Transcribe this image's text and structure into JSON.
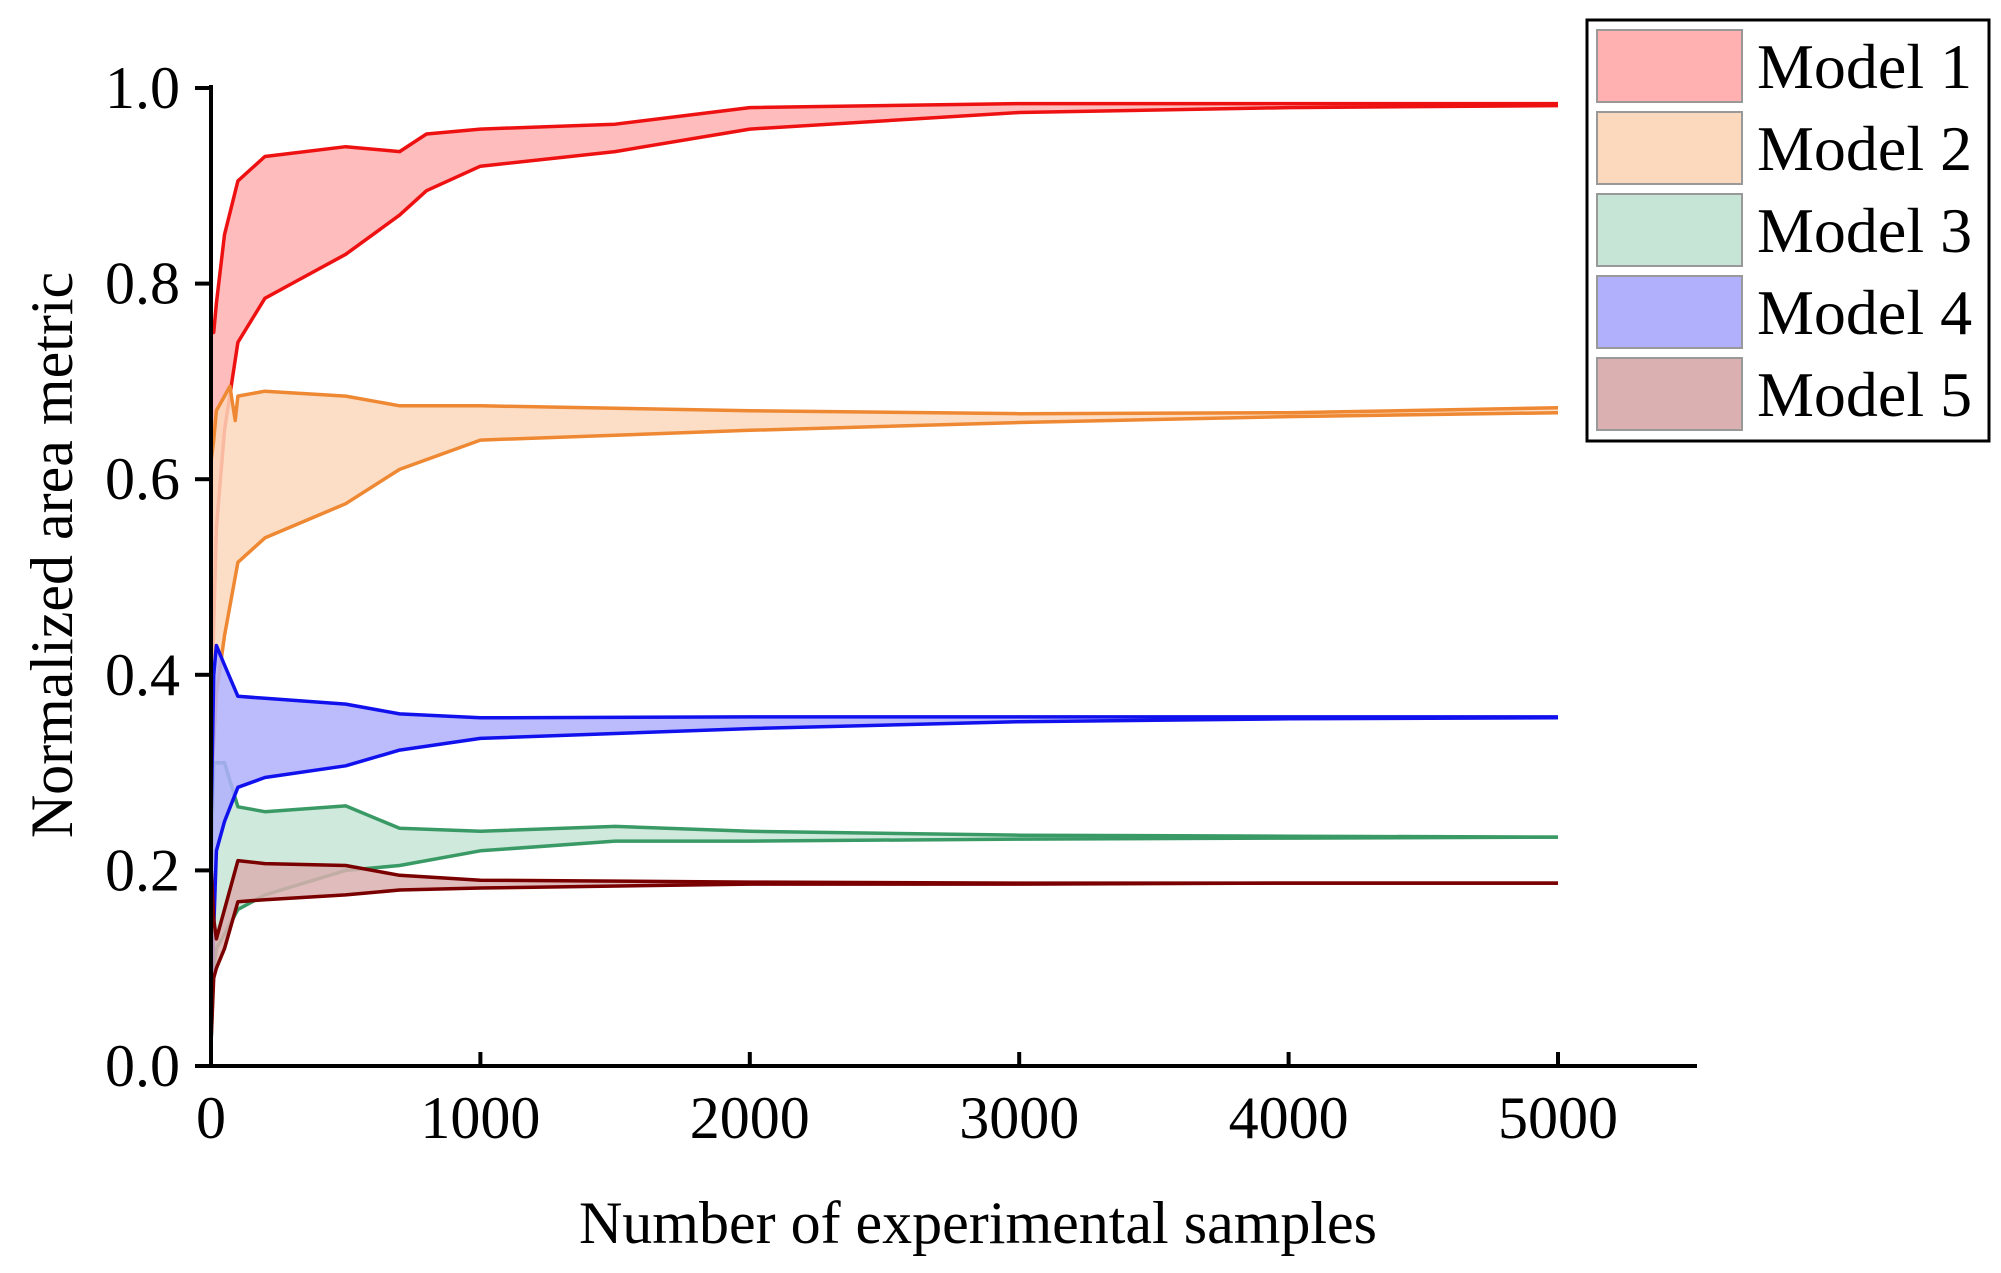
{
  "chart_data": {
    "type": "area",
    "title": "",
    "xlabel": "Number of experimental samples",
    "ylabel": "Normalized area metric",
    "xlim": [
      0,
      5500
    ],
    "ylim": [
      0,
      1.0
    ],
    "xticks": [
      0,
      1000,
      2000,
      3000,
      4000,
      5000
    ],
    "xtick_labels": [
      "0",
      "1000",
      "2000",
      "3000",
      "4000",
      "5000"
    ],
    "yticks": [
      0.0,
      0.2,
      0.4,
      0.6,
      0.8,
      1.0
    ],
    "ytick_labels": [
      "0.0",
      "0.2",
      "0.4",
      "0.6",
      "0.8",
      "1.0"
    ],
    "grid": false,
    "legend_position": "top-right",
    "series": [
      {
        "name": "Model 1",
        "line_color": "#ee1111",
        "fill_color": "#ffb0b0",
        "upper": [
          [
            1,
            0.76
          ],
          [
            10,
            0.75
          ],
          [
            20,
            0.78
          ],
          [
            50,
            0.85
          ],
          [
            100,
            0.905
          ],
          [
            200,
            0.93
          ],
          [
            500,
            0.94
          ],
          [
            700,
            0.935
          ],
          [
            800,
            0.953
          ],
          [
            1000,
            0.958
          ],
          [
            1500,
            0.963
          ],
          [
            2000,
            0.98
          ],
          [
            3000,
            0.984
          ],
          [
            4000,
            0.984
          ],
          [
            5000,
            0.984
          ]
        ],
        "lower": [
          [
            1,
            0.35
          ],
          [
            10,
            0.45
          ],
          [
            20,
            0.55
          ],
          [
            50,
            0.65
          ],
          [
            100,
            0.74
          ],
          [
            200,
            0.785
          ],
          [
            300,
            0.8
          ],
          [
            500,
            0.83
          ],
          [
            700,
            0.87
          ],
          [
            800,
            0.895
          ],
          [
            1000,
            0.92
          ],
          [
            1500,
            0.935
          ],
          [
            2000,
            0.958
          ],
          [
            3000,
            0.975
          ],
          [
            4000,
            0.98
          ],
          [
            5000,
            0.982
          ]
        ]
      },
      {
        "name": "Model 2",
        "line_color": "#ee8833",
        "fill_color": "#fcd8bc",
        "upper": [
          [
            1,
            0.62
          ],
          [
            10,
            0.64
          ],
          [
            20,
            0.67
          ],
          [
            50,
            0.685
          ],
          [
            70,
            0.695
          ],
          [
            90,
            0.66
          ],
          [
            100,
            0.685
          ],
          [
            200,
            0.69
          ],
          [
            500,
            0.685
          ],
          [
            700,
            0.675
          ],
          [
            1000,
            0.675
          ],
          [
            2000,
            0.67
          ],
          [
            3000,
            0.667
          ],
          [
            4000,
            0.668
          ],
          [
            5000,
            0.673
          ]
        ],
        "lower": [
          [
            1,
            0.28
          ],
          [
            10,
            0.33
          ],
          [
            20,
            0.38
          ],
          [
            50,
            0.44
          ],
          [
            100,
            0.515
          ],
          [
            200,
            0.54
          ],
          [
            500,
            0.575
          ],
          [
            700,
            0.61
          ],
          [
            1000,
            0.64
          ],
          [
            2000,
            0.65
          ],
          [
            3000,
            0.658
          ],
          [
            4000,
            0.664
          ],
          [
            5000,
            0.668
          ]
        ]
      },
      {
        "name": "Model 3",
        "line_color": "#3a9a66",
        "fill_color": "#c7e5d6",
        "upper": [
          [
            1,
            0.21
          ],
          [
            10,
            0.31
          ],
          [
            50,
            0.31
          ],
          [
            100,
            0.265
          ],
          [
            200,
            0.26
          ],
          [
            500,
            0.266
          ],
          [
            700,
            0.243
          ],
          [
            1000,
            0.24
          ],
          [
            1500,
            0.245
          ],
          [
            2000,
            0.24
          ],
          [
            3000,
            0.236
          ],
          [
            4000,
            0.235
          ],
          [
            5000,
            0.234
          ]
        ],
        "lower": [
          [
            1,
            0.03
          ],
          [
            10,
            0.1
          ],
          [
            20,
            0.12
          ],
          [
            50,
            0.135
          ],
          [
            100,
            0.16
          ],
          [
            200,
            0.175
          ],
          [
            500,
            0.2
          ],
          [
            700,
            0.205
          ],
          [
            1000,
            0.22
          ],
          [
            1500,
            0.23
          ],
          [
            2000,
            0.23
          ],
          [
            3000,
            0.232
          ],
          [
            4000,
            0.233
          ],
          [
            5000,
            0.234
          ]
        ]
      },
      {
        "name": "Model 4",
        "line_color": "#1111ee",
        "fill_color": "#b0b0fc",
        "upper": [
          [
            1,
            0.26
          ],
          [
            10,
            0.4
          ],
          [
            20,
            0.43
          ],
          [
            50,
            0.41
          ],
          [
            100,
            0.378
          ],
          [
            200,
            0.376
          ],
          [
            500,
            0.37
          ],
          [
            700,
            0.36
          ],
          [
            1000,
            0.356
          ],
          [
            2000,
            0.357
          ],
          [
            3000,
            0.357
          ],
          [
            4000,
            0.357
          ],
          [
            5000,
            0.357
          ]
        ],
        "lower": [
          [
            1,
            0.05
          ],
          [
            10,
            0.14
          ],
          [
            20,
            0.22
          ],
          [
            50,
            0.25
          ],
          [
            100,
            0.285
          ],
          [
            200,
            0.295
          ],
          [
            500,
            0.307
          ],
          [
            700,
            0.323
          ],
          [
            1000,
            0.335
          ],
          [
            2000,
            0.345
          ],
          [
            3000,
            0.352
          ],
          [
            4000,
            0.355
          ],
          [
            5000,
            0.356
          ]
        ]
      },
      {
        "name": "Model 5",
        "line_color": "#7a0000",
        "fill_color": "#dbb0b0",
        "upper": [
          [
            1,
            0.2
          ],
          [
            10,
            0.15
          ],
          [
            20,
            0.13
          ],
          [
            50,
            0.16
          ],
          [
            100,
            0.21
          ],
          [
            200,
            0.207
          ],
          [
            500,
            0.205
          ],
          [
            700,
            0.195
          ],
          [
            1000,
            0.19
          ],
          [
            2000,
            0.188
          ],
          [
            3000,
            0.187
          ],
          [
            4000,
            0.187
          ],
          [
            5000,
            0.187
          ]
        ],
        "lower": [
          [
            1,
            0.03
          ],
          [
            10,
            0.09
          ],
          [
            20,
            0.1
          ],
          [
            50,
            0.12
          ],
          [
            100,
            0.168
          ],
          [
            200,
            0.17
          ],
          [
            500,
            0.175
          ],
          [
            700,
            0.18
          ],
          [
            1000,
            0.182
          ],
          [
            2000,
            0.186
          ],
          [
            3000,
            0.186
          ],
          [
            4000,
            0.187
          ],
          [
            5000,
            0.187
          ]
        ]
      }
    ]
  }
}
